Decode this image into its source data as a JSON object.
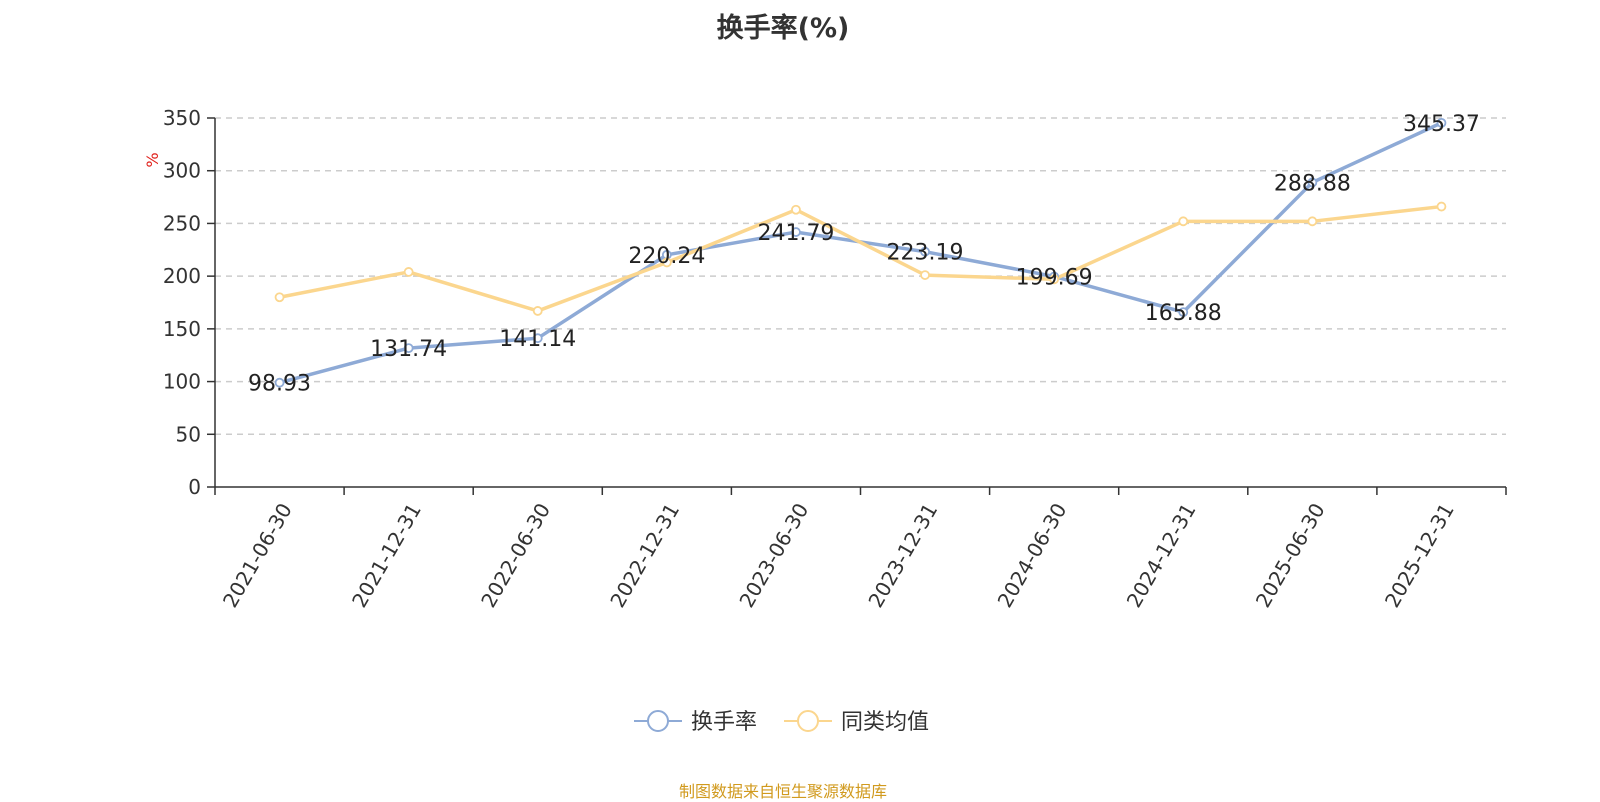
{
  "title": "换手率(%)",
  "source": "制图数据来自恒生聚源数据库",
  "chart_data": {
    "type": "line",
    "title": "换手率(%)",
    "ylabel": "%",
    "ylim": [
      0,
      350
    ],
    "yticks": [
      0,
      50,
      100,
      150,
      200,
      250,
      300,
      350
    ],
    "grid": true,
    "legend_position": "bottom-center",
    "categories": [
      "2021-06-30",
      "2021-12-31",
      "2022-06-30",
      "2022-12-31",
      "2023-06-30",
      "2023-12-31",
      "2024-06-30",
      "2024-12-31",
      "2025-06-30",
      "2025-12-31"
    ],
    "series": [
      {
        "name": "换手率",
        "color": "#8eaad6",
        "values": [
          98.93,
          131.74,
          141.14,
          220.24,
          241.79,
          223.19,
          199.69,
          165.88,
          288.88,
          345.37
        ],
        "labels": [
          "98.93",
          "131.74",
          "141.14",
          "220.24",
          "241.79",
          "223.19",
          "199.69",
          "165.88",
          "288.88",
          "345.37"
        ],
        "show_labels": true
      },
      {
        "name": "同类均值",
        "color": "#fbd68e",
        "values": [
          180,
          204,
          167,
          213,
          263,
          201,
          197,
          252,
          252,
          266
        ],
        "show_labels": false
      }
    ]
  }
}
